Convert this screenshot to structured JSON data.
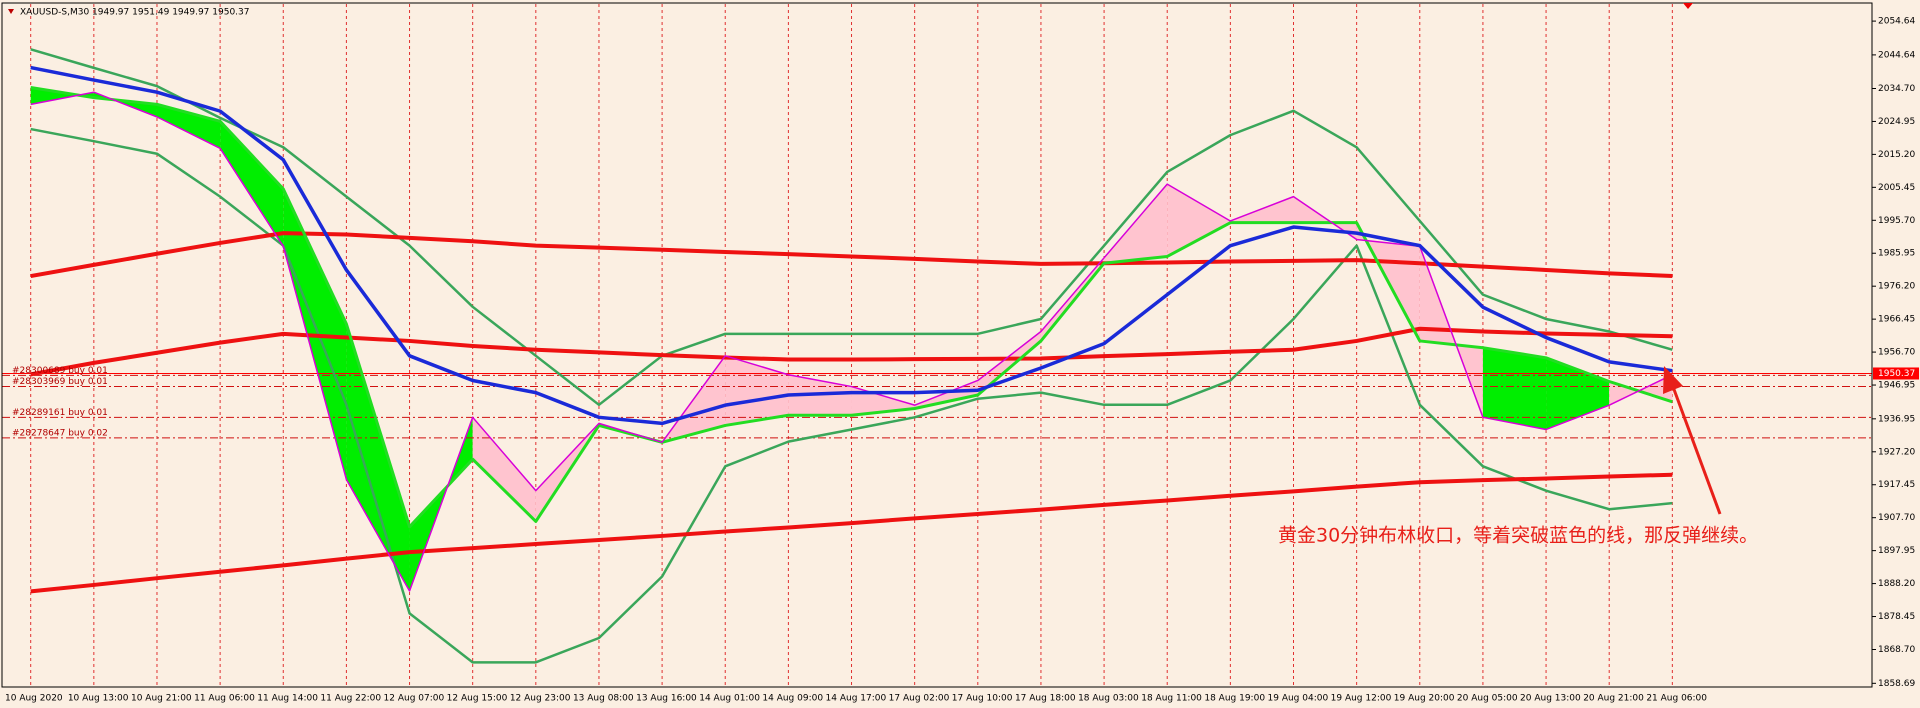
{
  "chart_data": {
    "type": "line",
    "title": "XAUUSD-S,M30  1949.97 1951.49 1949.97 1950.37",
    "annotation": "黄金30分钟布林收口，等着突破蓝色的线，那反弹继续。",
    "categories": [
      "10 Aug 2020",
      "10 Aug 13:00",
      "10 Aug 21:00",
      "11 Aug 06:00",
      "11 Aug 14:00",
      "11 Aug 22:00",
      "12 Aug 07:00",
      "12 Aug 15:00",
      "12 Aug 23:00",
      "13 Aug 08:00",
      "13 Aug 16:00",
      "14 Aug 01:00",
      "14 Aug 09:00",
      "14 Aug 17:00",
      "17 Aug 02:00",
      "17 Aug 10:00",
      "17 Aug 18:00",
      "18 Aug 03:00",
      "18 Aug 11:00",
      "18 Aug 19:00",
      "19 Aug 04:00",
      "19 Aug 12:00",
      "19 Aug 20:00",
      "20 Aug 05:00",
      "20 Aug 13:00",
      "20 Aug 21:00",
      "21 Aug 06:00"
    ],
    "series": [
      {
        "color": "#3aa65a",
        "values": [
          2046.3,
          2040.8,
          2035.4,
          2026,
          2017.3,
          2002.7,
          1988.2,
          1970.1,
          1955.6,
          1941.1,
          1955.6,
          1962.1,
          1962.1,
          1962.1,
          1962.1,
          1962.1,
          1966.5,
          1988.2,
          2010.0,
          2020.9,
          2028.1,
          2017.3,
          1995.5,
          1973.7,
          1966.5,
          1962.8,
          1957.4
        ]
      },
      {
        "color": "#3aa65a",
        "values": [
          2022.7,
          2019.1,
          2015.4,
          2002.7,
          1988.2,
          1941.1,
          1879.4,
          1864.9,
          1864.9,
          1872.1,
          1890.3,
          1922.9,
          1930.2,
          1933.8,
          1937.4,
          1942.9,
          1944.7,
          1941.1,
          1941.1,
          1948.3,
          1966.5,
          1988.2,
          1941.1,
          1922.9,
          1915.7,
          1910.2,
          1912.0
        ]
      },
      {
        "color": "#ee1111",
        "values": [
          1979.2,
          1982.5,
          1985.8,
          1989,
          1991.9,
          1991.5,
          1990.5,
          1989.5,
          1988.2,
          1987.6,
          1987,
          1986.3,
          1985.7,
          1985,
          1984.3,
          1983.5,
          1982.8,
          1983,
          1983.2,
          1983.5,
          1983.7,
          1983.9,
          1983,
          1982,
          1981,
          1980,
          1979.2
        ]
      },
      {
        "color": "#ee1111",
        "values": [
          1950.1,
          1953.5,
          1956.5,
          1959.5,
          1962.1,
          1961,
          1960,
          1958.5,
          1957.4,
          1956.6,
          1955.8,
          1955.1,
          1954.5,
          1954.5,
          1954.6,
          1954.7,
          1954.8,
          1955.5,
          1956.1,
          1956.8,
          1957.4,
          1960,
          1963.6,
          1962.8,
          1962.2,
          1961.8,
          1961.4
        ]
      },
      {
        "color": "#ee1111",
        "values": [
          1885.9,
          1887.8,
          1889.8,
          1891.7,
          1893.6,
          1895.6,
          1897.5,
          1898.7,
          1899.9,
          1901.1,
          1902.3,
          1903.6,
          1904.8,
          1906.1,
          1907.5,
          1908.8,
          1910.1,
          1911.5,
          1912.8,
          1914.2,
          1915.5,
          1916.9,
          1918.2,
          1918.8,
          1919.3,
          1919.9,
          1920.4
        ]
      },
      {
        "color": "#22dd22",
        "values": [
          2035,
          2032,
          2030,
          2025,
          2005,
          1965,
          1905,
          1925,
          1906.6,
          1935,
          1930,
          1935,
          1938,
          1938,
          1940,
          1944,
          1960,
          1983,
          1985,
          1995,
          1995,
          1995,
          1960,
          1958,
          1955,
          1948,
          1942
        ]
      },
      {
        "color": "#d800d8",
        "values": [
          2030,
          2033.6,
          2026.3,
          2017,
          1988,
          1919,
          1886,
          1937.4,
          1915.7,
          1935.6,
          1930,
          1955.6,
          1950,
          1946.5,
          1941,
          1948.3,
          1962.8,
          1984.6,
          2006.4,
          1995.5,
          2002.7,
          1990,
          1988,
          1937.4,
          1933.8,
          1941,
          1950
        ]
      },
      {
        "color": "#1a2ad8",
        "values": [
          2040.9,
          2037.2,
          2033.6,
          2028,
          2013.6,
          1981,
          1955.6,
          1948.3,
          1944.7,
          1937.4,
          1935.6,
          1941,
          1944,
          1944.7,
          1944.7,
          1945.4,
          1952,
          1959.2,
          1973.7,
          1988.2,
          1993.7,
          1991.9,
          1988.2,
          1970,
          1961,
          1953.8,
          1951.2
        ]
      }
    ],
    "current_price": 1950.37,
    "orders": [
      {
        "label": "#28300689 buy 0.01",
        "price": 1949.8
      },
      {
        "label": "#28303969 buy 0.01",
        "price": 1946.5
      },
      {
        "label": "#28289161 buy 0.01",
        "price": 1937.4
      },
      {
        "label": "#28278647 buy 0.02",
        "price": 1931.3
      }
    ],
    "ylim": [
      1857.6,
      2059.7
    ],
    "yticks": [
      2054.64,
      2044.64,
      {
        "value": 2034.7,
        "label": "2034.70"
      },
      2024.95,
      {
        "value": 2015.2,
        "label": "2015.20"
      },
      2005.45,
      {
        "value": 1995.7,
        "label": "1995.70"
      },
      1985.95,
      {
        "value": 1976.2,
        "label": "1976.20"
      },
      1966.45,
      {
        "value": 1956.7,
        "label": "1956.70"
      },
      1946.95,
      1936.95,
      {
        "value": 1927.2,
        "label": "1927.20"
      },
      1917.45,
      {
        "value": 1907.7,
        "label": "1907.70"
      },
      1897.95,
      {
        "value": 1888.2,
        "label": "1888.20"
      },
      1878.45,
      {
        "value": 1868.7,
        "label": "1868.70"
      },
      1858.69
    ],
    "grid": true
  }
}
